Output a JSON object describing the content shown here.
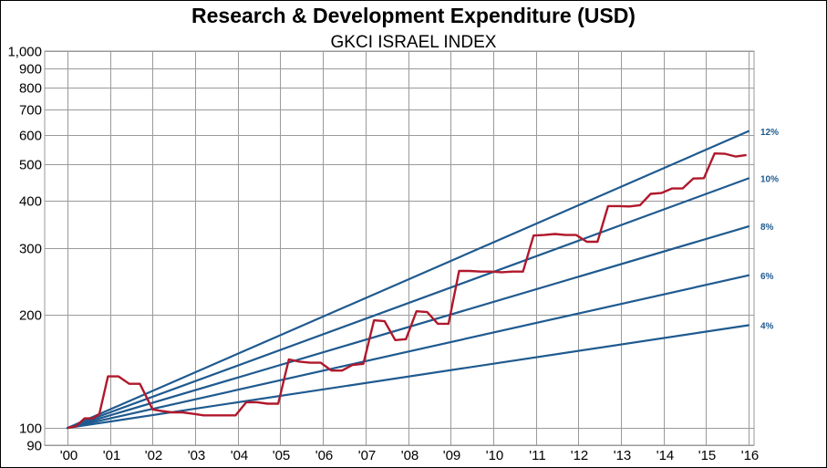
{
  "chart_data": {
    "type": "line",
    "title": "Research & Development Expenditure (USD)",
    "subtitle": "GKCI ISRAEL INDEX",
    "xlabel": "",
    "ylabel": "",
    "y_scale": "log",
    "ylim": [
      90,
      1000
    ],
    "xlim": [
      2000,
      2016.8
    ],
    "y_ticks": [
      90,
      100,
      200,
      300,
      400,
      500,
      600,
      700,
      800,
      900,
      1000
    ],
    "y_tick_labels": [
      "90",
      "100",
      "200",
      "300",
      "400",
      "500",
      "600",
      "700",
      "800",
      "900",
      "1,000"
    ],
    "x_ticks": [
      2000,
      2001,
      2002,
      2003,
      2004,
      2005,
      2006,
      2007,
      2008,
      2009,
      2010,
      2011,
      2012,
      2013,
      2014,
      2015,
      2016
    ],
    "x_tick_labels": [
      "'00",
      "'01",
      "'02",
      "'03",
      "'04",
      "'05",
      "'06",
      "'07",
      "'08",
      "'09",
      "'10",
      "'11",
      "'12",
      "'13",
      "'14",
      "'15",
      "'16"
    ],
    "grid": true,
    "growth_lines": [
      {
        "label": "12%",
        "rate": 0.12,
        "color": "#1f5a8f"
      },
      {
        "label": "10%",
        "rate": 0.1,
        "color": "#1f5a8f"
      },
      {
        "label": "8%",
        "rate": 0.08,
        "color": "#1f5a8f"
      },
      {
        "label": "6%",
        "rate": 0.06,
        "color": "#1f5a8f"
      },
      {
        "label": "4%",
        "rate": 0.04,
        "color": "#1f5a8f"
      }
    ],
    "growth_base": {
      "x": 2000,
      "y": 100,
      "x_end": 2016
    },
    "series": [
      {
        "color": "#b0182c",
        "x": [
          2000.0,
          2000.2,
          2000.4,
          2000.6,
          2000.75,
          2000.95,
          2001.2,
          2001.45,
          2001.7,
          2002.0,
          2002.2,
          2002.45,
          2002.7,
          2002.95,
          2003.2,
          2003.45,
          2003.7,
          2003.95,
          2004.2,
          2004.45,
          2004.7,
          2004.95,
          2005.2,
          2005.45,
          2005.7,
          2005.95,
          2006.2,
          2006.45,
          2006.7,
          2006.95,
          2007.2,
          2007.45,
          2007.7,
          2007.95,
          2008.2,
          2008.45,
          2008.7,
          2008.95,
          2009.2,
          2009.45,
          2009.7,
          2009.95,
          2010.2,
          2010.45,
          2010.7,
          2010.95,
          2011.2,
          2011.45,
          2011.7,
          2011.95,
          2012.2,
          2012.45,
          2012.7,
          2012.95,
          2013.2,
          2013.45,
          2013.7,
          2013.95,
          2014.2,
          2014.45,
          2014.7,
          2014.95,
          2015.2,
          2015.45,
          2015.7,
          2015.95
        ],
        "y": [
          100,
          101,
          106,
          106,
          109,
          137,
          137,
          131,
          131,
          112,
          111,
          110,
          110,
          109,
          108,
          108,
          108,
          108,
          117,
          117,
          116,
          116,
          152,
          150,
          149,
          149,
          142,
          142,
          147,
          148,
          193,
          192,
          171,
          172,
          204,
          203,
          189,
          189,
          261,
          261,
          260,
          260,
          259,
          260,
          260,
          324,
          325,
          327,
          325,
          325,
          312,
          312,
          388,
          388,
          387,
          390,
          418,
          420,
          432,
          432,
          459,
          460,
          535,
          534,
          525,
          530
        ]
      }
    ]
  }
}
